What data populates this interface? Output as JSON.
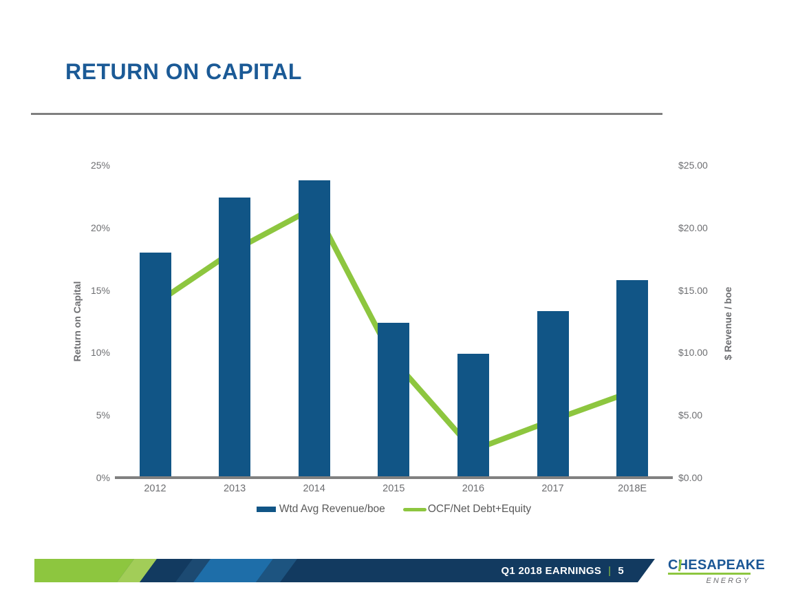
{
  "slide": {
    "title": "RETURN ON CAPITAL",
    "footer": {
      "label": "Q1 2018 EARNINGS",
      "divider": "|",
      "page_number": "5"
    },
    "logo": {
      "name": "CHESAPEAKE",
      "sub": "ENERGY"
    }
  },
  "colors": {
    "title_blue": "#1B5A96",
    "bar_blue": "#115586",
    "line_green": "#8DC63F",
    "axis_gray": "#6D6E71",
    "legend_gray": "#595959",
    "rule_gray": "#7F7F7F",
    "footer_navy": "#123A60",
    "footer_blue": "#1E6EA9",
    "footer_green": "#8DC63F"
  },
  "chart_data": {
    "type": "bar",
    "subtype": "combo-bar-line",
    "categories": [
      "2012",
      "2013",
      "2014",
      "2015",
      "2016",
      "2017",
      "2018E"
    ],
    "series": [
      {
        "name": "Wtd Avg Revenue/boe",
        "type": "bar",
        "axis": "right",
        "color": "#115586",
        "values": [
          18.0,
          22.4,
          23.8,
          12.4,
          9.9,
          13.3,
          15.8
        ]
      },
      {
        "name": "OCF/Net Debt+Equity",
        "type": "line",
        "axis": "left",
        "color": "#8DC63F",
        "values": [
          13.9,
          18.2,
          21.6,
          9.4,
          2.2,
          4.6,
          6.9
        ]
      }
    ],
    "left_axis": {
      "title": "Return on Capital",
      "min": 0,
      "max": 25,
      "ticks": [
        "0%",
        "5%",
        "10%",
        "15%",
        "20%",
        "25%"
      ]
    },
    "right_axis": {
      "title": "$ Revenue / boe",
      "min": 0,
      "max": 25,
      "ticks": [
        "$0.00",
        "$5.00",
        "$10.00",
        "$15.00",
        "$20.00",
        "$25.00"
      ]
    },
    "grid": false,
    "legend_position": "bottom"
  }
}
